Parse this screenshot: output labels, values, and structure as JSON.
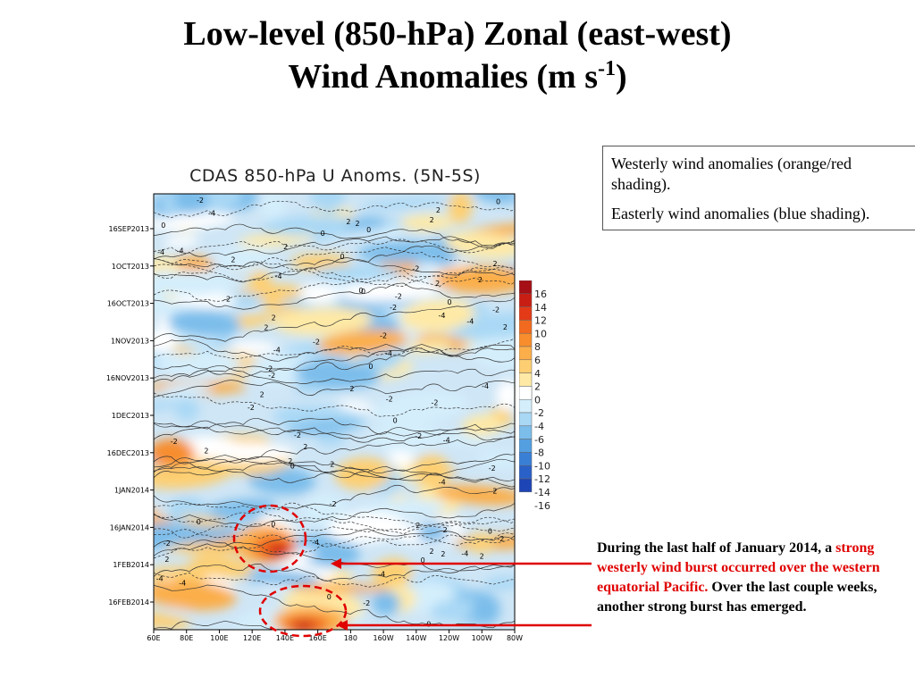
{
  "slide": {
    "title_line1": "Low-level (850-hPa) Zonal (east-west)",
    "title_line2": "Wind Anomalies (m s",
    "title_sup": "-1",
    "title_end": ")"
  },
  "info_box": {
    "westerly": "Westerly wind anomalies (orange/red shading).",
    "easterly": "Easterly wind anomalies (blue shading)."
  },
  "annotation": {
    "part1": "During the last half of January 2014, a ",
    "highlight": "strong westerly wind burst occurred over the western equatorial Pacific.",
    "part2": " Over the last couple weeks, another strong burst has emerged.",
    "arrow_color": "#e00000"
  },
  "chart_data": {
    "type": "heatmap",
    "title": "CDAS 850-hPa U Anoms. (5N-5S)",
    "x_tick_labels": [
      "60E",
      "80E",
      "100E",
      "120E",
      "140E",
      "160E",
      "180",
      "160W",
      "140W",
      "120W",
      "100W",
      "80W"
    ],
    "y_tick_labels": [
      "16SEP2013",
      "1OCT2013",
      "16OCT2013",
      "1NOV2013",
      "16NOV2013",
      "1DEC2013",
      "16DEC2013",
      "1JAN2014",
      "16JAN2014",
      "1FEB2014",
      "16FEB2014"
    ],
    "colorbar_levels": [
      "16",
      "14",
      "12",
      "10",
      "8",
      "6",
      "4",
      "2",
      "0",
      "-2",
      "-4",
      "-6",
      "-8",
      "-10",
      "-12",
      "-14",
      "-16"
    ],
    "colorbar_colors": [
      "#a50f15",
      "#c81e14",
      "#e33a17",
      "#f26a1f",
      "#f78d2d",
      "#fbae4a",
      "#fdcf72",
      "#fee9a6",
      "#ffffff",
      "#d4eefc",
      "#a9d8f5",
      "#7bbdeb",
      "#549fe0",
      "#3a7fd6",
      "#2a61c8",
      "#1e45b5",
      "#142c9a"
    ],
    "contour_labels": [
      "2",
      "0",
      "-2",
      "-4",
      "4",
      "6",
      "8"
    ],
    "highlighted_events": [
      {
        "lon_range": [
          "120E",
          "160E"
        ],
        "time": "late JAN 2014",
        "note": "strong westerly wind burst"
      },
      {
        "lon_range": [
          "120E",
          "170E"
        ],
        "time": "late FEB 2014",
        "note": "second strong burst"
      }
    ]
  }
}
